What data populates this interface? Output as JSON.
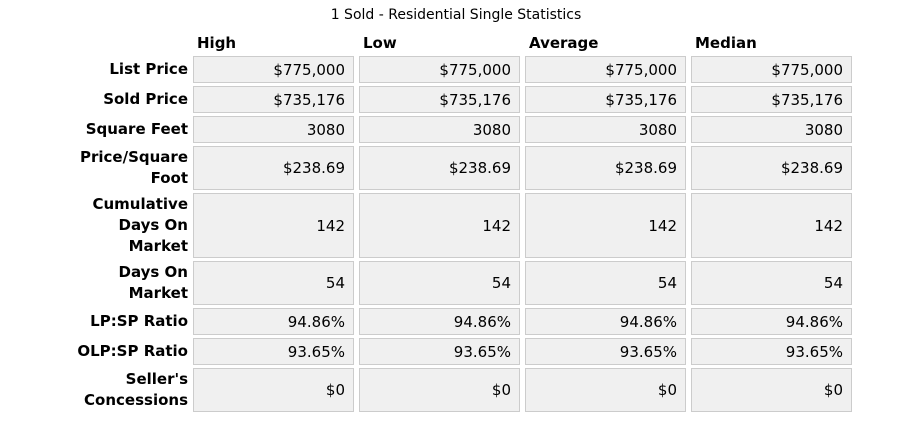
{
  "title": "1 Sold - Residential Single Statistics",
  "table": {
    "columns": [
      "High",
      "Low",
      "Average",
      "Median"
    ],
    "rows": [
      {
        "label": "List Price",
        "values": [
          "$775,000",
          "$775,000",
          "$775,000",
          "$775,000"
        ]
      },
      {
        "label": "Sold Price",
        "values": [
          "$735,176",
          "$735,176",
          "$735,176",
          "$735,176"
        ]
      },
      {
        "label": "Square Feet",
        "values": [
          "3080",
          "3080",
          "3080",
          "3080"
        ]
      },
      {
        "label": "Price/Square\nFoot",
        "values": [
          "$238.69",
          "$238.69",
          "$238.69",
          "$238.69"
        ]
      },
      {
        "label": "Cumulative\nDays On\nMarket",
        "values": [
          "142",
          "142",
          "142",
          "142"
        ]
      },
      {
        "label": "Days On\nMarket",
        "values": [
          "54",
          "54",
          "54",
          "54"
        ]
      },
      {
        "label": "LP:SP Ratio",
        "values": [
          "94.86%",
          "94.86%",
          "94.86%",
          "94.86%"
        ]
      },
      {
        "label": "OLP:SP Ratio",
        "values": [
          "93.65%",
          "93.65%",
          "93.65%",
          "93.65%"
        ]
      },
      {
        "label": "Seller's\nConcessions",
        "values": [
          "$0",
          "$0",
          "$0",
          "$0"
        ]
      }
    ],
    "colors": {
      "cell_bg": "#f0f0f0",
      "cell_border": "#cccccc",
      "text": "#000000",
      "page_bg": "#ffffff"
    }
  }
}
